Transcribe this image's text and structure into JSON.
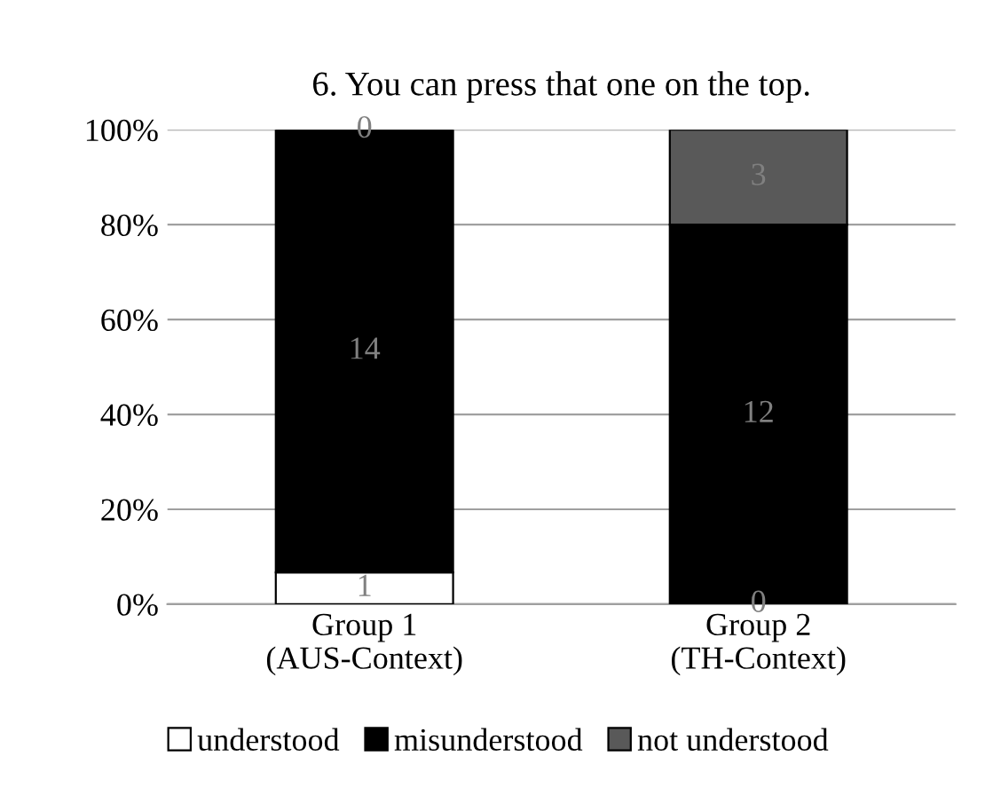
{
  "chart_data": {
    "type": "bar",
    "title": "6. You can press that one on the top.",
    "categories": [
      "Group 1\n(AUS-Context)",
      "Group 2\n(TH-Context)"
    ],
    "stacked": true,
    "series": [
      {
        "name": "understood",
        "color": "#ffffff",
        "values": [
          6.7,
          0
        ]
      },
      {
        "name": "misunderstood",
        "color": "#000000",
        "values": [
          93.3,
          80
        ]
      },
      {
        "name": "not understood",
        "color": "#595959",
        "values": [
          0,
          20
        ]
      }
    ],
    "annotations": [
      "1",
      "0",
      "14",
      "12",
      "0",
      "3"
    ],
    "ylim": [
      0,
      100
    ],
    "yticks": [
      {
        "value": 0,
        "label": "0%"
      },
      {
        "value": 20,
        "label": "20%"
      },
      {
        "value": 40,
        "label": "40%"
      },
      {
        "value": 60,
        "label": "60%"
      },
      {
        "value": 80,
        "label": "80%"
      },
      {
        "value": 100,
        "label": "100%"
      }
    ],
    "grid": "y",
    "legend": "bottom"
  }
}
